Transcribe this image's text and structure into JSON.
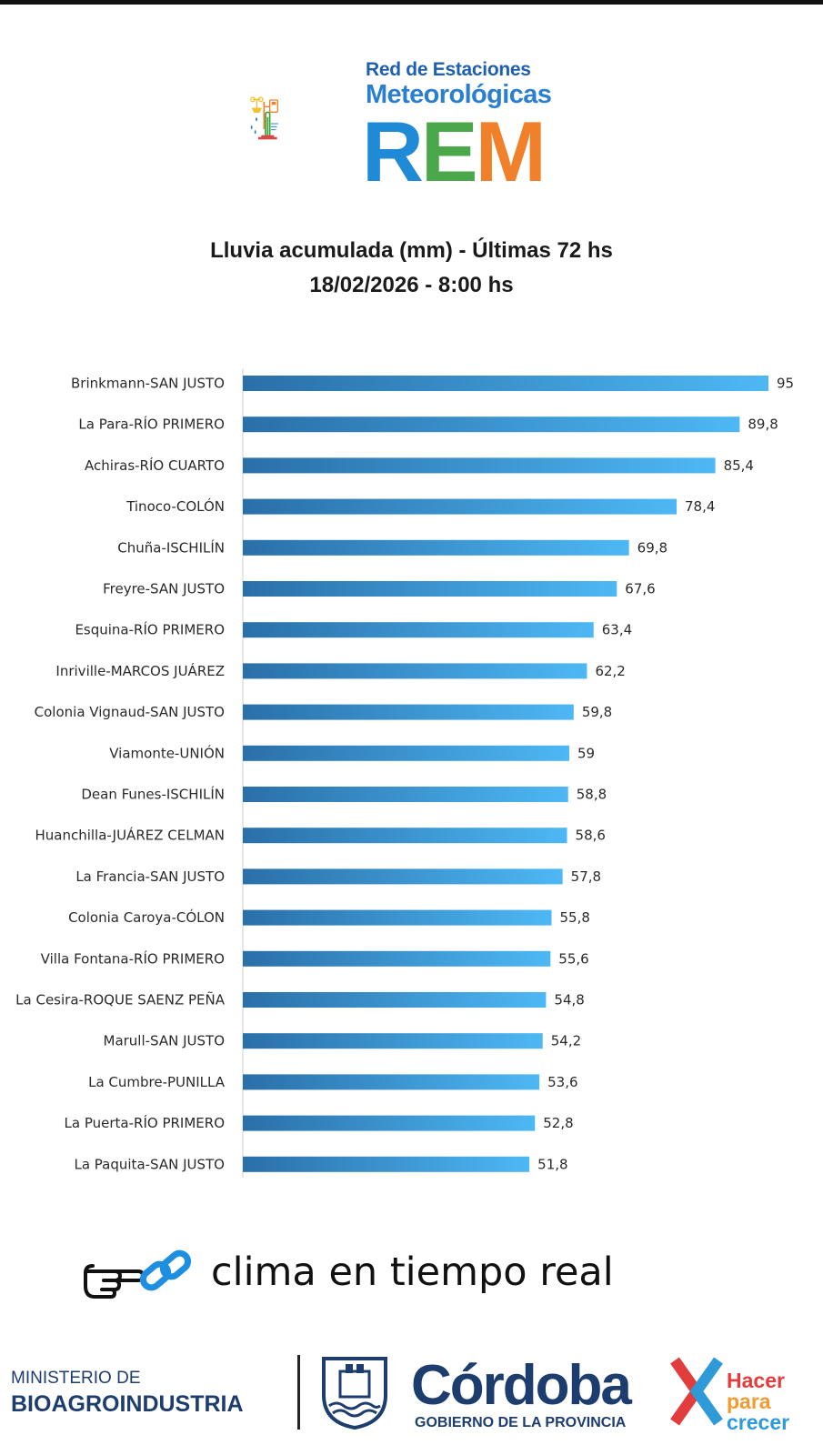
{
  "logo": {
    "line1": "Red de Estaciones",
    "line2": "Meteorológicas",
    "rem": [
      "R",
      "E",
      "M"
    ]
  },
  "header": {
    "title": "Lluvia acumulada (mm) - Últimas 72 hs",
    "date": "18/02/2026 - 8:00 hs"
  },
  "chart_data": {
    "type": "bar",
    "orientation": "horizontal",
    "title": "Lluvia acumulada (mm) - Últimas 72 hs",
    "categories": [
      "Brinkmann-SAN JUSTO",
      "La Para-RÍO PRIMERO",
      "Achiras-RÍO CUARTO",
      "Tinoco-COLÓN",
      "Chuña-ISCHILÍN",
      "Freyre-SAN JUSTO",
      "Esquina-RÍO PRIMERO",
      "Inriville-MARCOS JUÁREZ",
      "Colonia Vignaud-SAN JUSTO",
      "Viamonte-UNIÓN",
      "Dean Funes-ISCHILÍN",
      "Huanchilla-JUÁREZ CELMAN",
      "La Francia-SAN JUSTO",
      "Colonia Caroya-CÓLON",
      "Villa Fontana-RÍO PRIMERO",
      "La Cesira-ROQUE SAENZ PEÑA",
      "Marull-SAN JUSTO",
      "La Cumbre-PUNILLA",
      "La Puerta-RÍO PRIMERO",
      "La Paquita-SAN JUSTO"
    ],
    "values": [
      95,
      89.8,
      85.4,
      78.4,
      69.8,
      67.6,
      63.4,
      62.2,
      59.8,
      59,
      58.8,
      58.6,
      57.8,
      55.8,
      55.6,
      54.8,
      54.2,
      53.6,
      52.8,
      51.8
    ],
    "value_labels": [
      "95",
      "89,8",
      "85,4",
      "78,4",
      "69,8",
      "67,6",
      "63,4",
      "62,2",
      "59,8",
      "59",
      "58,8",
      "58,6",
      "57,8",
      "55,8",
      "55,6",
      "54,8",
      "54,2",
      "53,6",
      "52,8",
      "51,8"
    ],
    "xlim": [
      0,
      95
    ],
    "grid": false,
    "colors": {
      "bar_start": "#2a6fa8",
      "bar_end": "#4db8f5"
    }
  },
  "link": {
    "text": "clima en tiempo real",
    "icons": [
      "pointing-hand-icon",
      "link-icon"
    ]
  },
  "footer": {
    "ministry_line1": "MINISTERIO DE",
    "ministry_line2": "BIOAGROINDUSTRIA",
    "cordoba": "Córdoba",
    "gobierno": "GOBIERNO DE LA PROVINCIA",
    "slogan": [
      "Hacer",
      "para",
      "crecer"
    ]
  }
}
